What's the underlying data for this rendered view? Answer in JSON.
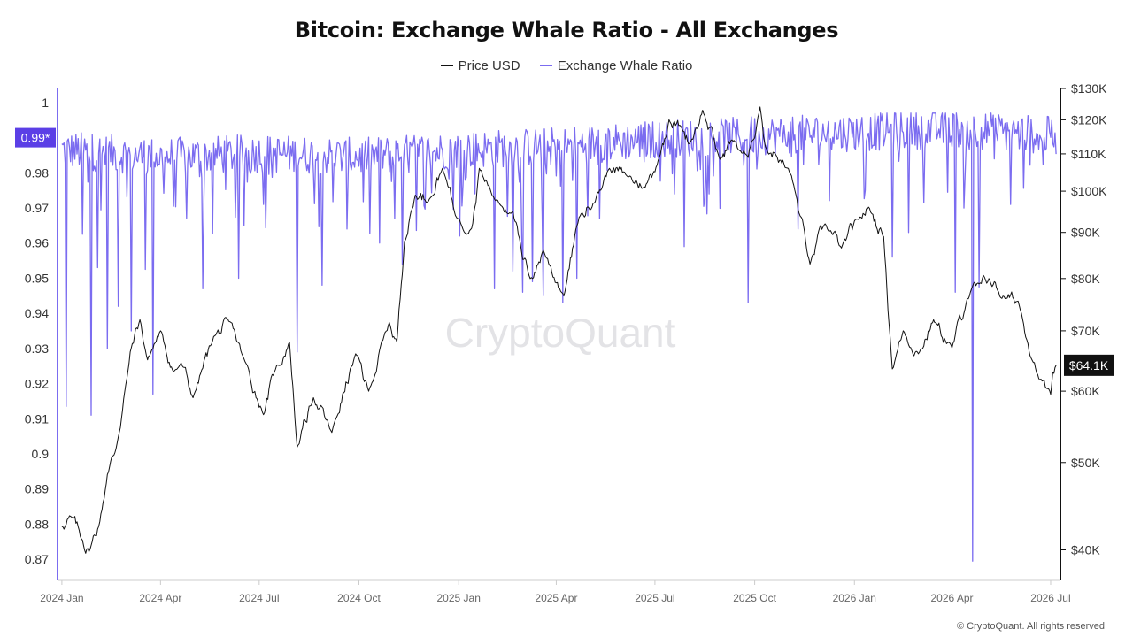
{
  "footer": "© CryptoQuant. All rights reserved",
  "chart_data": {
    "type": "line",
    "title": "Bitcoin: Exchange Whale Ratio - All Exchanges",
    "watermark": "CryptoQuant",
    "legend": {
      "placement": "top-center",
      "entries": [
        "Price USD",
        "Exchange Whale Ratio"
      ]
    },
    "colors": {
      "price": "#111111",
      "ratio": "#7b6cf0",
      "ratio_badge": "#5b3fe6",
      "price_badge": "#111111"
    },
    "x_ticks": [
      "2024 Jan",
      "2024 Apr",
      "2024 Jul",
      "2024 Oct",
      "2025 Jan",
      "2025 Apr",
      "2025 Jul",
      "2025 Oct",
      "2026 Jan",
      "2026 Apr",
      "2026 Jul"
    ],
    "xlim": [
      "2023-12-28",
      "2026-07-10"
    ],
    "left_axis": {
      "label": "Exchange Whale Ratio",
      "ticks": [
        "1",
        "0.99",
        "0.98",
        "0.97",
        "0.96",
        "0.95",
        "0.94",
        "0.93",
        "0.92",
        "0.91",
        "0.9",
        "0.89",
        "0.88",
        "0.87"
      ],
      "ylim": [
        0.864,
        1.004
      ]
    },
    "right_axis": {
      "label": "Price USD",
      "scale": "log",
      "ticks": [
        "$130K",
        "$120K",
        "$110K",
        "$100K",
        "$90K",
        "$80K",
        "$70K",
        "$60K",
        "$50K",
        "$40K"
      ],
      "ylim": [
        37000,
        130000
      ]
    },
    "current_values": {
      "ratio_label": "0.99*",
      "ratio_value": 0.99,
      "price_label": "$64.1K",
      "price_value": 64100
    },
    "series": [
      {
        "name": "Price USD",
        "axis": "right",
        "x": [
          "2024-01-01",
          "2024-01-10",
          "2024-01-20",
          "2024-01-26",
          "2024-02-05",
          "2024-02-12",
          "2024-02-20",
          "2024-03-01",
          "2024-03-05",
          "2024-03-13",
          "2024-03-20",
          "2024-04-01",
          "2024-04-13",
          "2024-04-20",
          "2024-05-01",
          "2024-05-20",
          "2024-06-05",
          "2024-06-15",
          "2024-07-05",
          "2024-07-15",
          "2024-07-29",
          "2024-08-05",
          "2024-08-20",
          "2024-09-06",
          "2024-09-28",
          "2024-10-10",
          "2024-10-29",
          "2024-11-05",
          "2024-11-12",
          "2024-11-22",
          "2024-12-05",
          "2024-12-17",
          "2024-12-30",
          "2025-01-13",
          "2025-01-20",
          "2025-02-03",
          "2025-02-20",
          "2025-03-01",
          "2025-03-10",
          "2025-03-20",
          "2025-04-08",
          "2025-04-22",
          "2025-05-05",
          "2025-05-20",
          "2025-06-05",
          "2025-06-22",
          "2025-07-05",
          "2025-07-14",
          "2025-07-25",
          "2025-08-02",
          "2025-08-14",
          "2025-08-30",
          "2025-09-10",
          "2025-09-25",
          "2025-10-06",
          "2025-10-11",
          "2025-10-20",
          "2025-11-04",
          "2025-11-21",
          "2025-12-05",
          "2025-12-20",
          "2026-01-05",
          "2026-01-14",
          "2026-01-28",
          "2026-02-05",
          "2026-02-15",
          "2026-03-01",
          "2026-03-15",
          "2026-04-01",
          "2026-04-15",
          "2026-04-28",
          "2026-05-05",
          "2026-05-20",
          "2026-06-01",
          "2026-06-20",
          "2026-07-01",
          "2026-07-06"
        ],
        "values": [
          42500,
          43500,
          41000,
          39800,
          43000,
          48500,
          51800,
          62000,
          67000,
          72000,
          65000,
          70000,
          63000,
          64500,
          59000,
          69000,
          71500,
          66000,
          56500,
          63000,
          68000,
          52000,
          59000,
          54000,
          66000,
          60000,
          71500,
          68000,
          88000,
          99000,
          98000,
          106000,
          93500,
          91000,
          106000,
          98000,
          95000,
          84000,
          80000,
          86000,
          76500,
          93500,
          97000,
          106000,
          104000,
          101000,
          109000,
          120000,
          118000,
          113000,
          123000,
          108500,
          114000,
          109000,
          124000,
          112000,
          110000,
          104000,
          83000,
          92000,
          86500,
          93000,
          96000,
          89000,
          63500,
          70000,
          66000,
          72000,
          67000,
          76000,
          79000,
          80000,
          76000,
          75500,
          62000,
          59500,
          64100
        ]
      },
      {
        "name": "Exchange Whale Ratio",
        "axis": "left",
        "level_range": [
          0.972,
          0.995
        ],
        "spikes": [
          {
            "x": "2024-01-05",
            "y": 0.9135
          },
          {
            "x": "2024-01-20",
            "y": 0.9625
          },
          {
            "x": "2024-01-28",
            "y": 0.911
          },
          {
            "x": "2024-02-03",
            "y": 0.953
          },
          {
            "x": "2024-02-12",
            "y": 0.93
          },
          {
            "x": "2024-02-22",
            "y": 0.942
          },
          {
            "x": "2024-03-05",
            "y": 0.935
          },
          {
            "x": "2024-03-18",
            "y": 0.9525
          },
          {
            "x": "2024-03-25",
            "y": 0.917
          },
          {
            "x": "2024-05-10",
            "y": 0.947
          },
          {
            "x": "2024-06-12",
            "y": 0.95
          },
          {
            "x": "2024-07-05",
            "y": 0.971
          },
          {
            "x": "2024-08-05",
            "y": 0.929
          },
          {
            "x": "2024-08-28",
            "y": 0.948
          },
          {
            "x": "2024-09-20",
            "y": 0.964
          },
          {
            "x": "2024-10-20",
            "y": 0.96
          },
          {
            "x": "2024-11-10",
            "y": 0.954
          },
          {
            "x": "2025-01-02",
            "y": 0.962
          },
          {
            "x": "2025-02-03",
            "y": 0.947
          },
          {
            "x": "2025-02-20",
            "y": 0.952
          },
          {
            "x": "2025-03-01",
            "y": 0.946
          },
          {
            "x": "2025-03-10",
            "y": 0.949
          },
          {
            "x": "2025-03-20",
            "y": 0.945
          },
          {
            "x": "2025-04-07",
            "y": 0.943
          },
          {
            "x": "2025-04-20",
            "y": 0.95
          },
          {
            "x": "2025-07-28",
            "y": 0.959
          },
          {
            "x": "2025-08-20",
            "y": 0.974
          },
          {
            "x": "2025-09-25",
            "y": 0.943
          },
          {
            "x": "2025-11-10",
            "y": 0.964
          },
          {
            "x": "2026-02-05",
            "y": 0.956
          },
          {
            "x": "2026-02-20",
            "y": 0.963
          },
          {
            "x": "2026-04-04",
            "y": 0.946
          },
          {
            "x": "2026-04-20",
            "y": 0.8695
          },
          {
            "x": "2026-04-26",
            "y": 0.9475
          },
          {
            "x": "2026-05-25",
            "y": 0.971
          }
        ],
        "baseline_approx": [
          {
            "x": "2024-01-01",
            "y": 0.986
          },
          {
            "x": "2024-04-01",
            "y": 0.984
          },
          {
            "x": "2024-07-01",
            "y": 0.985
          },
          {
            "x": "2024-10-01",
            "y": 0.984
          },
          {
            "x": "2025-01-01",
            "y": 0.986
          },
          {
            "x": "2025-04-01",
            "y": 0.987
          },
          {
            "x": "2025-07-01",
            "y": 0.989
          },
          {
            "x": "2025-10-01",
            "y": 0.99
          },
          {
            "x": "2026-01-01",
            "y": 0.991
          },
          {
            "x": "2026-04-01",
            "y": 0.992
          },
          {
            "x": "2026-07-06",
            "y": 0.99
          }
        ]
      }
    ]
  }
}
